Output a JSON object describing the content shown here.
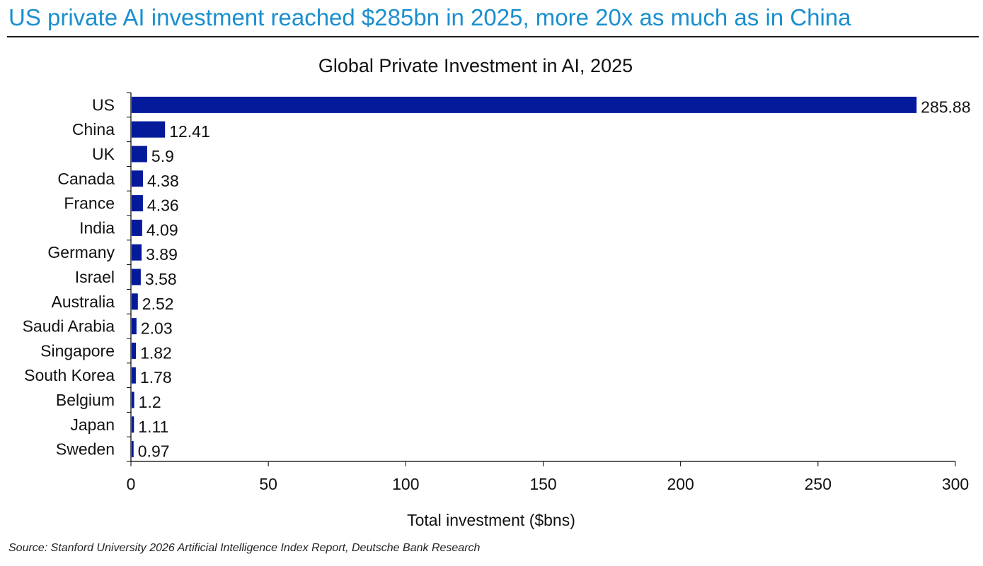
{
  "headline": "US private AI investment reached $285bn in 2025, more 20x as much as in China",
  "source": "Source: Stanford University 2026 Artificial Intelligence Index Report, Deutsche Bank Research",
  "colors": {
    "headline": "#1a8fcf",
    "bar": "#041a9a"
  },
  "chart_data": {
    "type": "bar",
    "orientation": "horizontal",
    "title": "Global Private Investment in AI, 2025",
    "xlabel": "Total investment ($bns)",
    "ylabel": "",
    "xlim": [
      0,
      300
    ],
    "xticks": [
      0,
      50,
      100,
      150,
      200,
      250,
      300
    ],
    "grid": false,
    "categories": [
      "US",
      "China",
      "UK",
      "Canada",
      "France",
      "India",
      "Germany",
      "Israel",
      "Australia",
      "Saudi Arabia",
      "Singapore",
      "South Korea",
      "Belgium",
      "Japan",
      "Sweden"
    ],
    "values": [
      285.88,
      12.41,
      5.9,
      4.38,
      4.36,
      4.09,
      3.89,
      3.58,
      2.52,
      2.03,
      1.82,
      1.78,
      1.2,
      1.11,
      0.97
    ],
    "data_labels": [
      "285.88",
      "12.41",
      "5.9",
      "4.38",
      "4.36",
      "4.09",
      "3.89",
      "3.58",
      "2.52",
      "2.03",
      "1.82",
      "1.78",
      "1.2",
      "1.11",
      "0.97"
    ]
  }
}
